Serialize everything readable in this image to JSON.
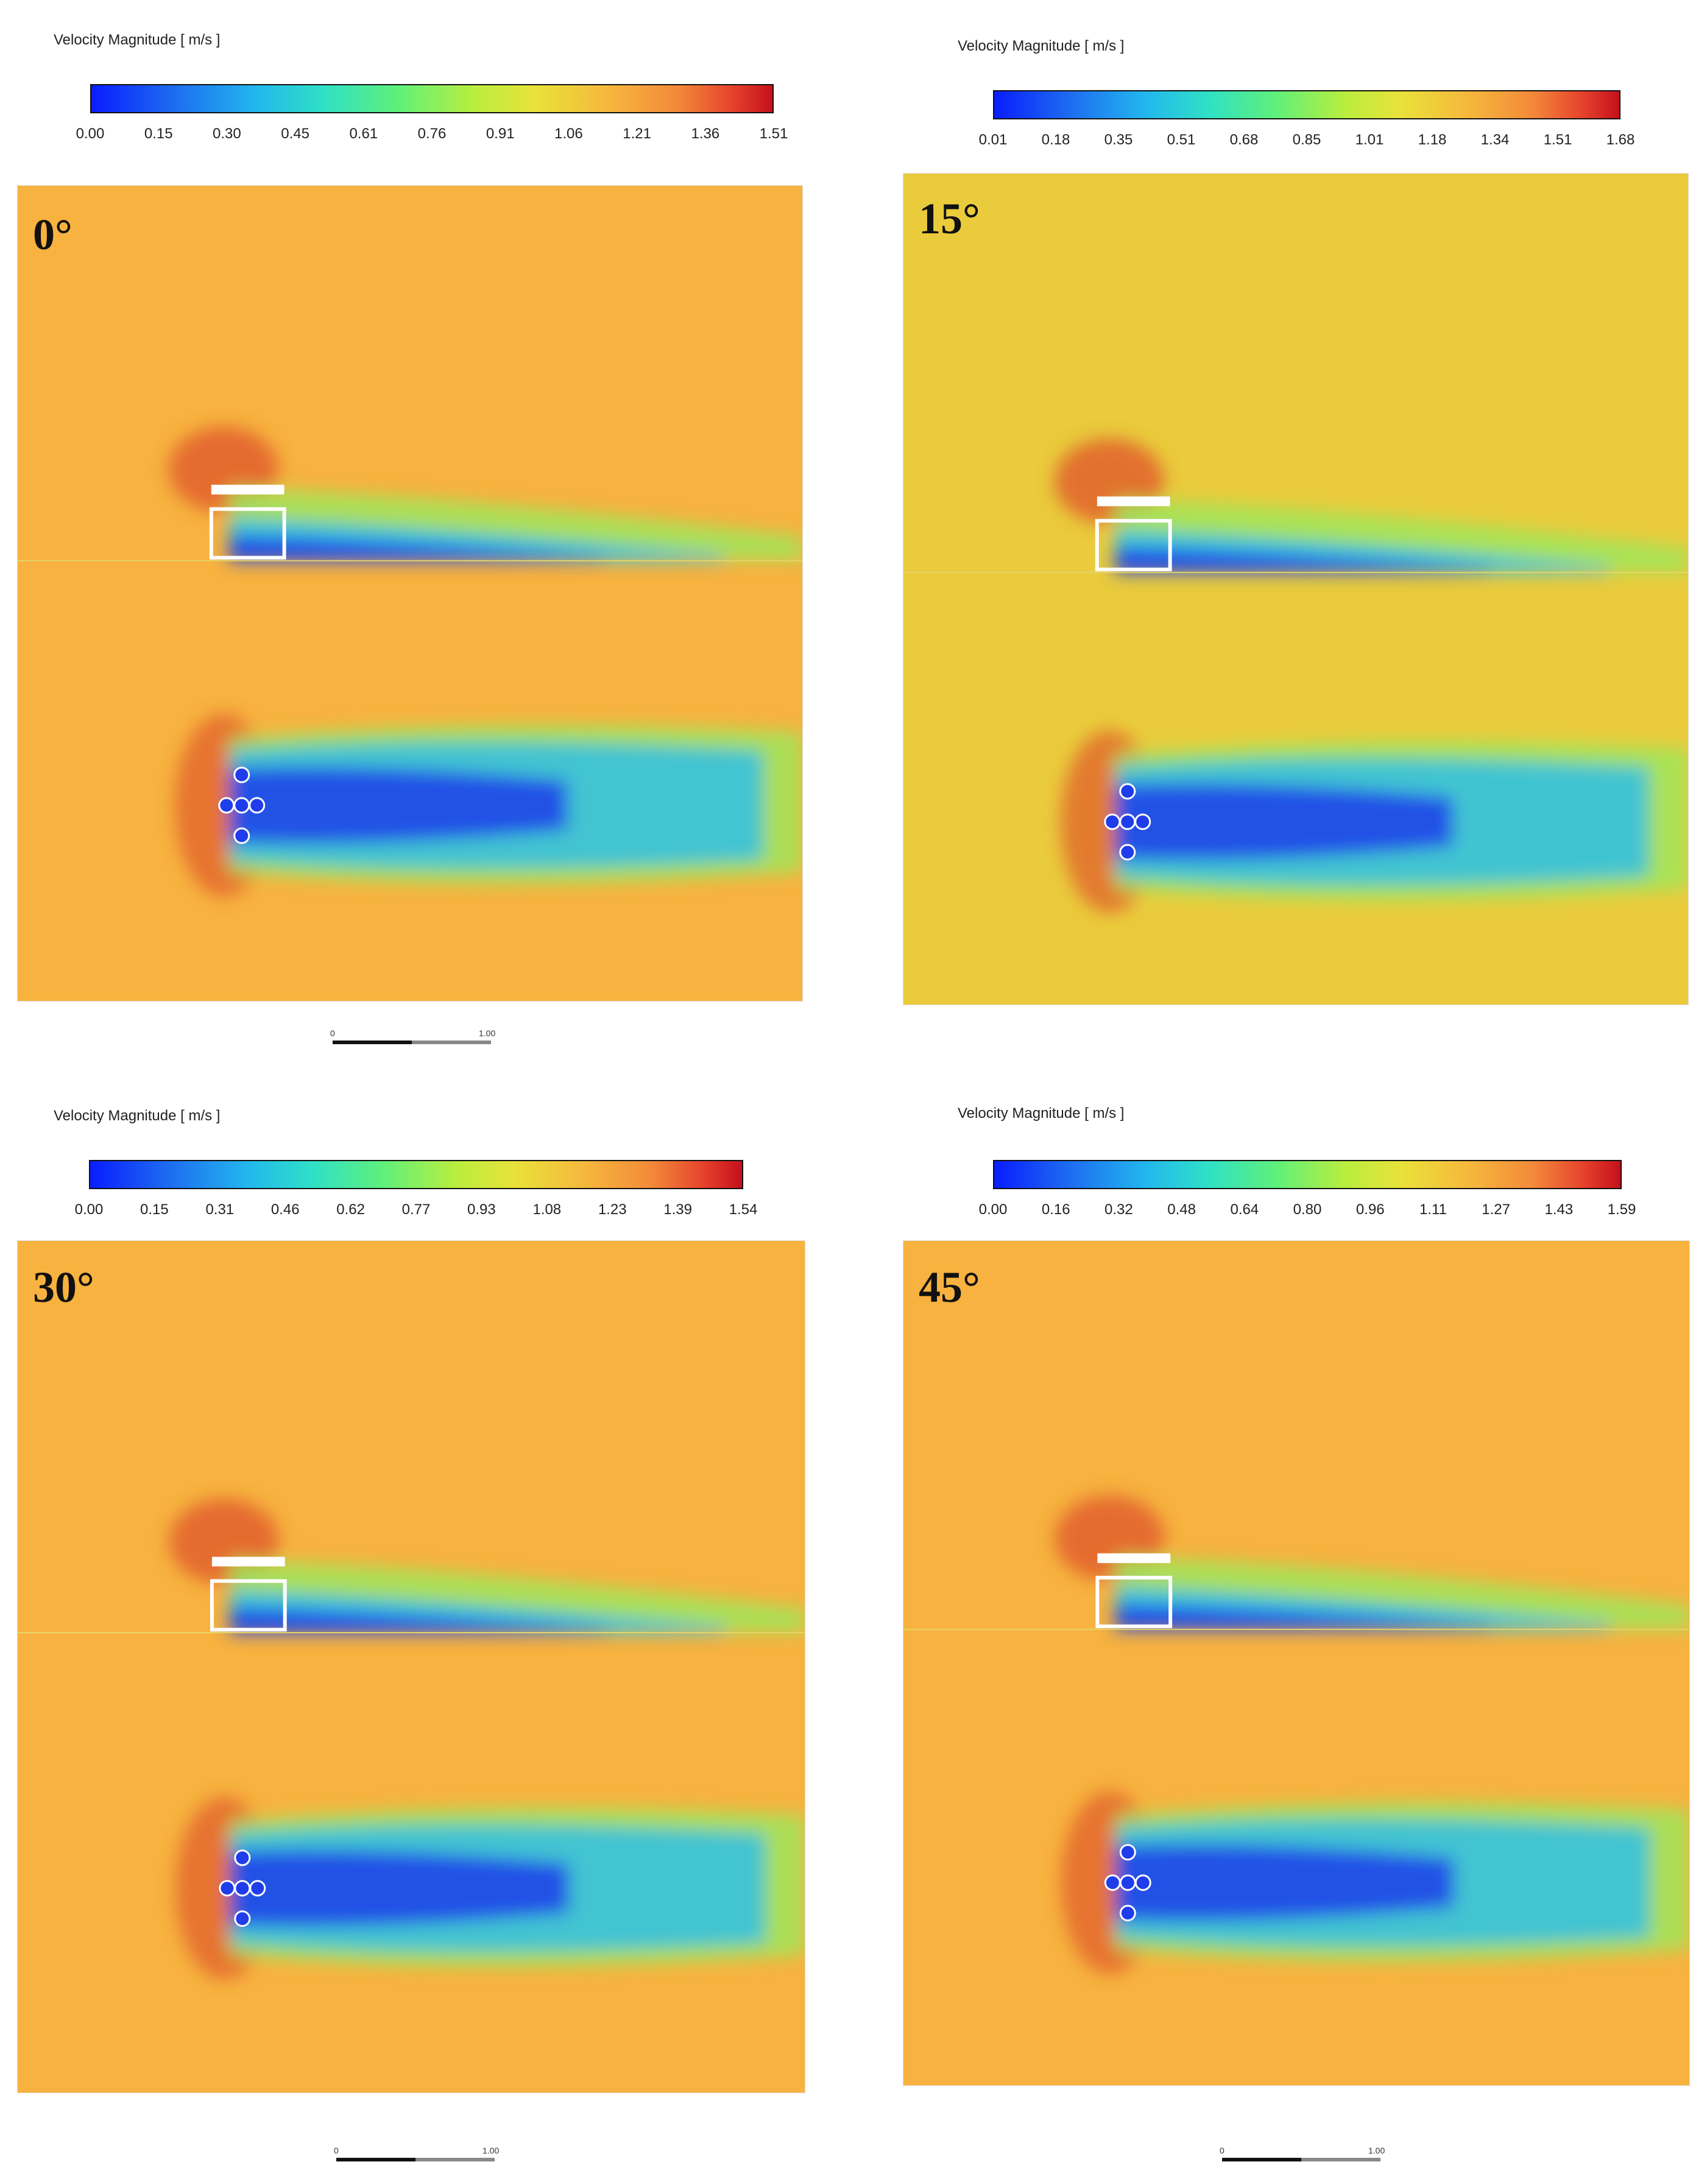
{
  "colors": {
    "panel_background": "#f7b23f",
    "panel_background_15": "#eacb3c"
  },
  "panels": [
    {
      "angle_label": "0°",
      "colorbar_title": "Velocity Magnitude [ m/s ]",
      "colorbar_ticks": [
        "0.00",
        "0.15",
        "0.30",
        "0.45",
        "0.61",
        "0.76",
        "0.91",
        "1.06",
        "1.21",
        "1.36",
        "1.51"
      ],
      "scalebar_left": "0",
      "scalebar_right": "1.00"
    },
    {
      "angle_label": "15°",
      "colorbar_title": "Velocity Magnitude [ m/s ]",
      "colorbar_ticks": [
        "0.01",
        "0.18",
        "0.35",
        "0.51",
        "0.68",
        "0.85",
        "1.01",
        "1.18",
        "1.34",
        "1.51",
        "1.68"
      ],
      "scalebar_left": "",
      "scalebar_right": ""
    },
    {
      "angle_label": "30°",
      "colorbar_title": "Velocity Magnitude [ m/s ]",
      "colorbar_ticks": [
        "0.00",
        "0.15",
        "0.31",
        "0.46",
        "0.62",
        "0.77",
        "0.93",
        "1.08",
        "1.23",
        "1.39",
        "1.54"
      ],
      "scalebar_left": "0",
      "scalebar_right": "1.00"
    },
    {
      "angle_label": "45°",
      "colorbar_title": "Velocity Magnitude [ m/s ]",
      "colorbar_ticks": [
        "0.00",
        "0.16",
        "0.32",
        "0.48",
        "0.64",
        "0.80",
        "0.96",
        "1.11",
        "1.27",
        "1.43",
        "1.59"
      ],
      "scalebar_left": "0",
      "scalebar_right": "1.00"
    }
  ]
}
